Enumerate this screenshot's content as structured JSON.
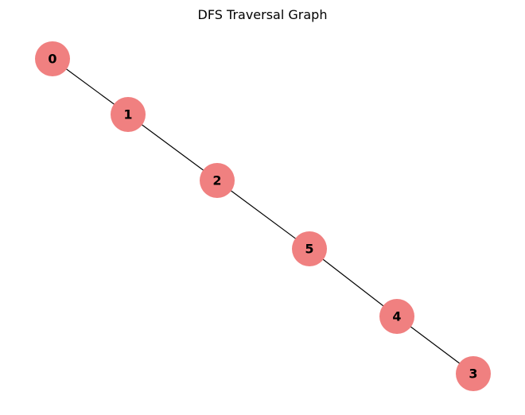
{
  "title": "DFS Traversal Graph",
  "colors": {
    "node_fill": "#f08080",
    "edge": "#000000",
    "label": "#000000",
    "background": "#ffffff"
  },
  "nodes": [
    {
      "id": "0",
      "label": "0"
    },
    {
      "id": "1",
      "label": "1"
    },
    {
      "id": "2",
      "label": "2"
    },
    {
      "id": "5",
      "label": "5"
    },
    {
      "id": "4",
      "label": "4"
    },
    {
      "id": "3",
      "label": "3"
    }
  ],
  "edges": [
    {
      "from": "0",
      "to": "1"
    },
    {
      "from": "1",
      "to": "2"
    },
    {
      "from": "2",
      "to": "5"
    },
    {
      "from": "5",
      "to": "4"
    },
    {
      "from": "4",
      "to": "3"
    }
  ]
}
